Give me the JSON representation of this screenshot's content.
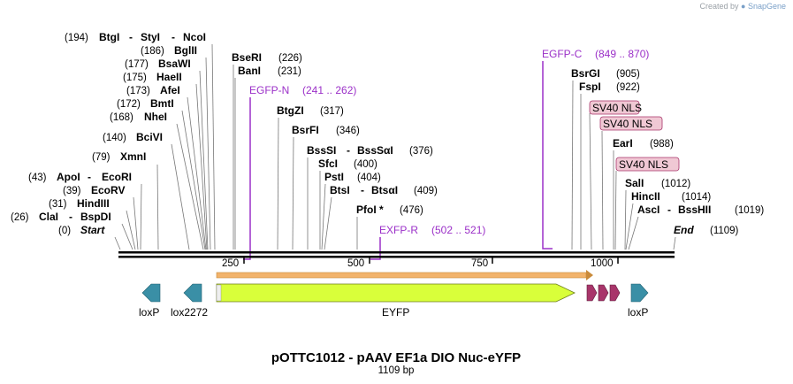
{
  "app": {
    "credit_prefix": "Created by",
    "credit_brand": "SnapGene"
  },
  "map": {
    "title": "pOTTC1012 - pAAV EF1a DIO Nuc-eYFP",
    "subtitle": "1109 bp",
    "length": 1109,
    "ticks": [
      "250",
      "500",
      "750",
      "1000"
    ],
    "start_label": "Start",
    "start_pos": "(0)",
    "end_label": "End",
    "end_pos": "(1109)"
  },
  "sites": [
    {
      "pos": "(194)",
      "names": [
        "BtgI",
        "StyI",
        "NcoI"
      ]
    },
    {
      "pos": "(186)",
      "names": [
        "BglII"
      ]
    },
    {
      "pos": "(177)",
      "names": [
        "BsaWI"
      ]
    },
    {
      "pos": "(175)",
      "names": [
        "HaeII"
      ]
    },
    {
      "pos": "(173)",
      "names": [
        "AfeI"
      ]
    },
    {
      "pos": "(172)",
      "names": [
        "BmtI"
      ]
    },
    {
      "pos": "(168)",
      "names": [
        "NheI"
      ]
    },
    {
      "pos": "(140)",
      "names": [
        "BciVI"
      ]
    },
    {
      "pos": "(79)",
      "names": [
        "XmnI"
      ]
    },
    {
      "pos": "(43)",
      "names": [
        "ApoI",
        "EcoRI"
      ]
    },
    {
      "pos": "(39)",
      "names": [
        "EcoRV"
      ]
    },
    {
      "pos": "(31)",
      "names": [
        "HindIII"
      ]
    },
    {
      "pos": "(26)",
      "names": [
        "ClaI",
        "BspDI"
      ]
    },
    {
      "pos": "(226)",
      "names": [
        "BseRI"
      ]
    },
    {
      "pos": "(231)",
      "names": [
        "BanI"
      ]
    },
    {
      "pos": "(317)",
      "names": [
        "BtgZI"
      ]
    },
    {
      "pos": "(346)",
      "names": [
        "BsrFI"
      ]
    },
    {
      "pos": "(376)",
      "names": [
        "BssSI",
        "BssSαI"
      ]
    },
    {
      "pos": "(400)",
      "names": [
        "SfcI"
      ]
    },
    {
      "pos": "(404)",
      "names": [
        "PstI"
      ]
    },
    {
      "pos": "(409)",
      "names": [
        "BtsI",
        "BtsαI"
      ]
    },
    {
      "pos": "(476)",
      "names": [
        "PfoI *"
      ]
    },
    {
      "pos": "(905)",
      "names": [
        "BsrGI"
      ]
    },
    {
      "pos": "(922)",
      "names": [
        "FspI"
      ]
    },
    {
      "pos": "(988)",
      "names": [
        "EarI"
      ]
    },
    {
      "pos": "(1012)",
      "names": [
        "SalI"
      ]
    },
    {
      "pos": "(1014)",
      "names": [
        "HincII"
      ]
    },
    {
      "pos": "(1019)",
      "names": [
        "AscI",
        "BssHII"
      ]
    }
  ],
  "primers": [
    {
      "name": "EGFP-N",
      "range": "(241 .. 262)"
    },
    {
      "name": "EXFP-R",
      "range": "(502 .. 521)"
    },
    {
      "name": "EGFP-C",
      "range": "(849 .. 870)"
    }
  ],
  "features": [
    {
      "name": "loxP",
      "color": "#3a8fa6"
    },
    {
      "name": "lox2272",
      "color": "#3a8fa6"
    },
    {
      "name": "EYFP",
      "color": "#d9ff3a"
    },
    {
      "name": "SV40 NLS",
      "color": "#a8356a"
    },
    {
      "name": "SV40 NLS",
      "color": "#a8356a"
    },
    {
      "name": "SV40 NLS",
      "color": "#a8356a"
    },
    {
      "name": "loxP",
      "color": "#3a8fa6"
    }
  ],
  "colors": {
    "primer": "#9b30c8",
    "orf": "#f2b36b",
    "nls_label_bg": "#f0c8d4",
    "nls_label_border": "#a8356a"
  }
}
